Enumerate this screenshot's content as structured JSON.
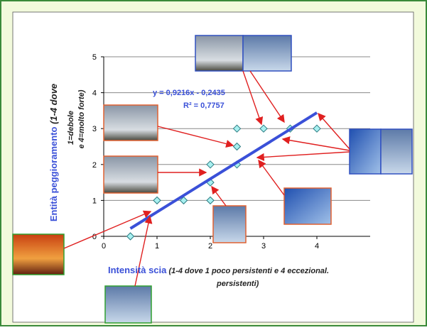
{
  "chart_data": {
    "type": "scatter",
    "x": [
      0.5,
      1,
      1.5,
      2,
      2,
      2,
      2.5,
      2.5,
      2.5,
      3,
      3.5,
      4
    ],
    "values": [
      0,
      1,
      1,
      1,
      1.5,
      2,
      2,
      2.5,
      3,
      3,
      3,
      3
    ],
    "color": "#a8f0f0",
    "xlim": [
      0,
      5
    ],
    "ylim": [
      0,
      5
    ],
    "xticks": [
      0,
      1,
      2,
      3,
      4
    ],
    "yticks": [
      0,
      1,
      2,
      3,
      4,
      5
    ],
    "grid": true,
    "x_label": [
      "Intensità scia",
      "(1-4 dove 1 poco persistenti e 4 eccezional.",
      "persistenti)"
    ],
    "y_label": [
      "Entità peggioramento",
      "(1-4 dove",
      "1=debole",
      "e 4=molto forte)"
    ],
    "trendline": {
      "equation": "y = 0,9216x - 0,2435",
      "r2": "R² = 0,7757",
      "slope": 0.9216,
      "intercept": -0.2435,
      "xrange": [
        0.5,
        4
      ],
      "color": "#3a50d8"
    }
  }
}
